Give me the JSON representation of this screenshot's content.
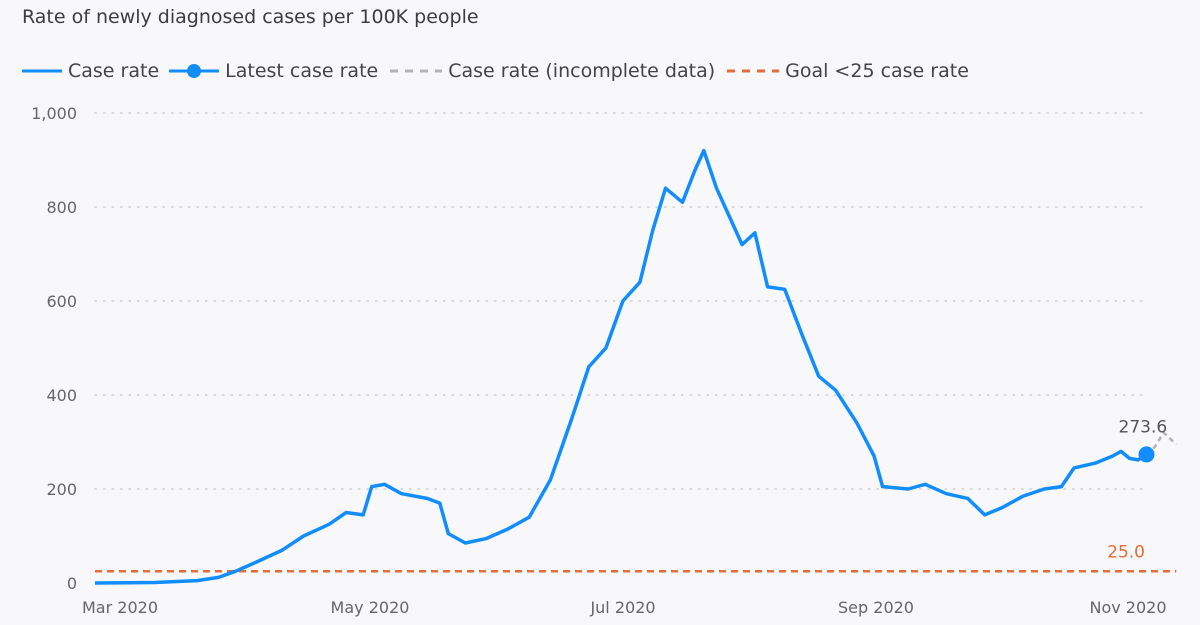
{
  "title": "Rate of newly diagnosed cases per 100K people",
  "legend": [
    {
      "label": "Case rate",
      "color": "#118DFF",
      "style": "solid"
    },
    {
      "label": "Latest case rate",
      "color": "#118DFF",
      "style": "solid-marker"
    },
    {
      "label": "Case rate (incomplete data)",
      "color": "#b3b3b3",
      "style": "dashed"
    },
    {
      "label": "Goal <25 case rate",
      "color": "#E66C37",
      "style": "dashed"
    }
  ],
  "colors": {
    "case": "#118DFF",
    "incomplete": "#b3b3b3",
    "goal": "#E66C37",
    "grid": "#cfcfcf"
  },
  "chart_data": {
    "type": "line",
    "title": "Rate of newly diagnosed cases per 100K people",
    "xlabel": "",
    "ylabel": "",
    "x_ticks": [
      "Mar 2020",
      "May 2020",
      "Jul 2020",
      "Sep 2020",
      "Nov 2020"
    ],
    "xlim": [
      "2020-03-01",
      "2020-11-01"
    ],
    "ylim": [
      0,
      1000
    ],
    "y_ticks": [
      0,
      200,
      400,
      600,
      800,
      1000
    ],
    "y_tick_labels": [
      "0",
      "200",
      "400",
      "600",
      "800",
      "1,000"
    ],
    "grid": "horizontal dotted",
    "legend_position": "top-left",
    "series": [
      {
        "name": "Case rate",
        "points": [
          [
            "2020-03-01",
            0
          ],
          [
            "2020-03-15",
            1
          ],
          [
            "2020-03-25",
            5
          ],
          [
            "2020-03-30",
            12
          ],
          [
            "2020-04-03",
            25
          ],
          [
            "2020-04-08",
            45
          ],
          [
            "2020-04-14",
            70
          ],
          [
            "2020-04-19",
            100
          ],
          [
            "2020-04-25",
            125
          ],
          [
            "2020-04-29",
            150
          ],
          [
            "2020-05-03",
            145
          ],
          [
            "2020-05-05",
            205
          ],
          [
            "2020-05-08",
            210
          ],
          [
            "2020-05-12",
            190
          ],
          [
            "2020-05-18",
            180
          ],
          [
            "2020-05-21",
            170
          ],
          [
            "2020-05-23",
            105
          ],
          [
            "2020-05-27",
            85
          ],
          [
            "2020-06-01",
            95
          ],
          [
            "2020-06-06",
            115
          ],
          [
            "2020-06-11",
            140
          ],
          [
            "2020-06-16",
            220
          ],
          [
            "2020-06-21",
            350
          ],
          [
            "2020-06-25",
            460
          ],
          [
            "2020-06-29",
            500
          ],
          [
            "2020-07-03",
            600
          ],
          [
            "2020-07-07",
            640
          ],
          [
            "2020-07-10",
            750
          ],
          [
            "2020-07-13",
            840
          ],
          [
            "2020-07-17",
            810
          ],
          [
            "2020-07-20",
            880
          ],
          [
            "2020-07-22",
            920
          ],
          [
            "2020-07-25",
            840
          ],
          [
            "2020-07-28",
            780
          ],
          [
            "2020-07-31",
            720
          ],
          [
            "2020-08-03",
            745
          ],
          [
            "2020-08-06",
            630
          ],
          [
            "2020-08-10",
            625
          ],
          [
            "2020-08-14",
            530
          ],
          [
            "2020-08-18",
            440
          ],
          [
            "2020-08-22",
            410
          ],
          [
            "2020-08-27",
            340
          ],
          [
            "2020-08-31",
            270
          ],
          [
            "2020-09-02",
            205
          ],
          [
            "2020-09-08",
            200
          ],
          [
            "2020-09-12",
            210
          ],
          [
            "2020-09-17",
            190
          ],
          [
            "2020-09-22",
            180
          ],
          [
            "2020-09-26",
            145
          ],
          [
            "2020-09-30",
            160
          ],
          [
            "2020-10-05",
            185
          ],
          [
            "2020-10-10",
            200
          ],
          [
            "2020-10-14",
            205
          ],
          [
            "2020-10-17",
            245
          ],
          [
            "2020-10-22",
            255
          ],
          [
            "2020-10-26",
            270
          ],
          [
            "2020-10-28",
            280
          ],
          [
            "2020-10-30",
            265
          ],
          [
            "2020-11-01",
            262
          ]
        ]
      },
      {
        "name": "Latest case rate",
        "points": [
          [
            "2020-11-03",
            273.6
          ]
        ]
      },
      {
        "name": "Case rate (incomplete data)",
        "points": [
          [
            "2020-11-03",
            273.6
          ],
          [
            "2020-11-05",
            290
          ],
          [
            "2020-11-07",
            320
          ],
          [
            "2020-11-10",
            295
          ]
        ]
      },
      {
        "name": "Goal <25 case rate",
        "points": [
          [
            "2020-03-01",
            25
          ],
          [
            "2020-11-10",
            25
          ]
        ]
      }
    ],
    "annotations": [
      {
        "text": "273.6",
        "series": "Latest case rate",
        "x": "2020-11-03",
        "y": 273.6
      },
      {
        "text": "25.0",
        "series": "Goal <25 case rate",
        "x": "2020-11-10",
        "y": 25
      }
    ]
  }
}
